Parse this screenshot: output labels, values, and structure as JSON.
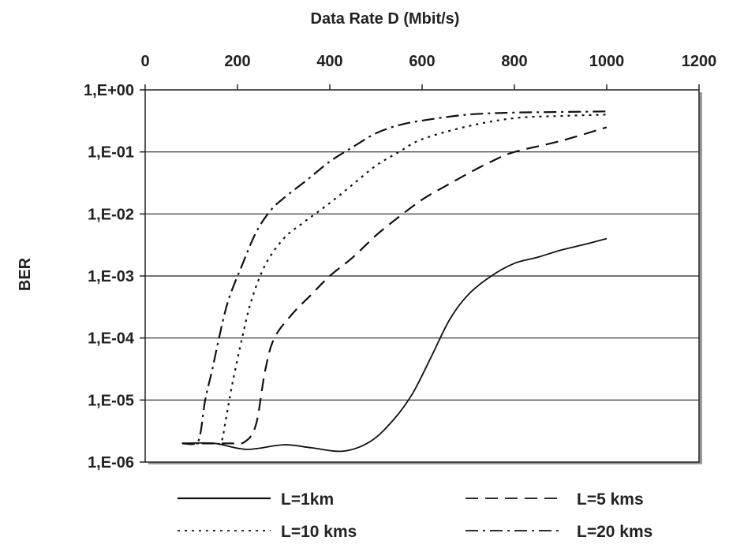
{
  "chart_data": {
    "type": "line",
    "xlabel": "Data Rate D (Mbit/s)",
    "ylabel": "BER",
    "xlim": [
      0,
      1200
    ],
    "x_ticks": [
      0,
      200,
      400,
      600,
      800,
      1000,
      1200
    ],
    "x_tick_labels": [
      "0",
      "200",
      "400",
      "600",
      "800",
      "1000",
      "1200"
    ],
    "y_scale": "log",
    "ylim": [
      1e-06,
      1
    ],
    "y_ticks": [
      1,
      0.1,
      0.01,
      0.001,
      0.0001,
      1e-05,
      1e-06
    ],
    "y_tick_labels": [
      "1,E+00",
      "1,E-01",
      "1,E-02",
      "1,E-03",
      "1,E-04",
      "1,E-05",
      "1,E-06"
    ],
    "grid": "horizontal",
    "legend_position": "bottom",
    "series": [
      {
        "name": "L=1km",
        "style": "solid",
        "points": [
          [
            80,
            2e-06
          ],
          [
            150,
            2e-06
          ],
          [
            220,
            1.6e-06
          ],
          [
            300,
            1.9e-06
          ],
          [
            360,
            1.7e-06
          ],
          [
            430,
            1.5e-06
          ],
          [
            490,
            2.2e-06
          ],
          [
            540,
            5e-06
          ],
          [
            580,
            1.3e-05
          ],
          [
            620,
            5e-05
          ],
          [
            660,
            0.0002
          ],
          [
            700,
            0.0005
          ],
          [
            750,
            0.001
          ],
          [
            800,
            0.0016
          ],
          [
            850,
            0.002
          ],
          [
            900,
            0.0026
          ],
          [
            950,
            0.0032
          ],
          [
            1000,
            0.004
          ]
        ]
      },
      {
        "name": "L=5 kms",
        "style": "long-dash",
        "points": [
          [
            80,
            2e-06
          ],
          [
            180,
            2e-06
          ],
          [
            215,
            2.1e-06
          ],
          [
            240,
            4e-06
          ],
          [
            260,
            3e-05
          ],
          [
            280,
            0.0001
          ],
          [
            320,
            0.00025
          ],
          [
            360,
            0.0005
          ],
          [
            400,
            0.001
          ],
          [
            450,
            0.002
          ],
          [
            500,
            0.0045
          ],
          [
            550,
            0.009
          ],
          [
            600,
            0.017
          ],
          [
            650,
            0.028
          ],
          [
            700,
            0.045
          ],
          [
            750,
            0.07
          ],
          [
            800,
            0.1
          ],
          [
            900,
            0.15
          ],
          [
            1000,
            0.25
          ]
        ]
      },
      {
        "name": "L=10 kms",
        "style": "short-dash",
        "points": [
          [
            80,
            2e-06
          ],
          [
            150,
            2e-06
          ],
          [
            165,
            2.1e-06
          ],
          [
            175,
            5e-06
          ],
          [
            190,
            2e-05
          ],
          [
            210,
            0.0001
          ],
          [
            230,
            0.0004
          ],
          [
            260,
            0.0015
          ],
          [
            300,
            0.004
          ],
          [
            340,
            0.007
          ],
          [
            400,
            0.015
          ],
          [
            450,
            0.03
          ],
          [
            500,
            0.06
          ],
          [
            550,
            0.1
          ],
          [
            600,
            0.16
          ],
          [
            700,
            0.26
          ],
          [
            800,
            0.35
          ],
          [
            900,
            0.38
          ],
          [
            1000,
            0.4
          ]
        ]
      },
      {
        "name": "L=20 kms",
        "style": "dash-dot",
        "points": [
          [
            80,
            2e-06
          ],
          [
            110,
            2e-06
          ],
          [
            120,
            3e-06
          ],
          [
            130,
            1e-05
          ],
          [
            145,
            3e-05
          ],
          [
            160,
            0.0001
          ],
          [
            180,
            0.0004
          ],
          [
            210,
            0.0015
          ],
          [
            240,
            0.005
          ],
          [
            270,
            0.011
          ],
          [
            300,
            0.018
          ],
          [
            350,
            0.035
          ],
          [
            400,
            0.07
          ],
          [
            450,
            0.12
          ],
          [
            500,
            0.2
          ],
          [
            550,
            0.27
          ],
          [
            600,
            0.32
          ],
          [
            700,
            0.4
          ],
          [
            800,
            0.43
          ],
          [
            900,
            0.44
          ],
          [
            1000,
            0.45
          ]
        ]
      }
    ]
  }
}
